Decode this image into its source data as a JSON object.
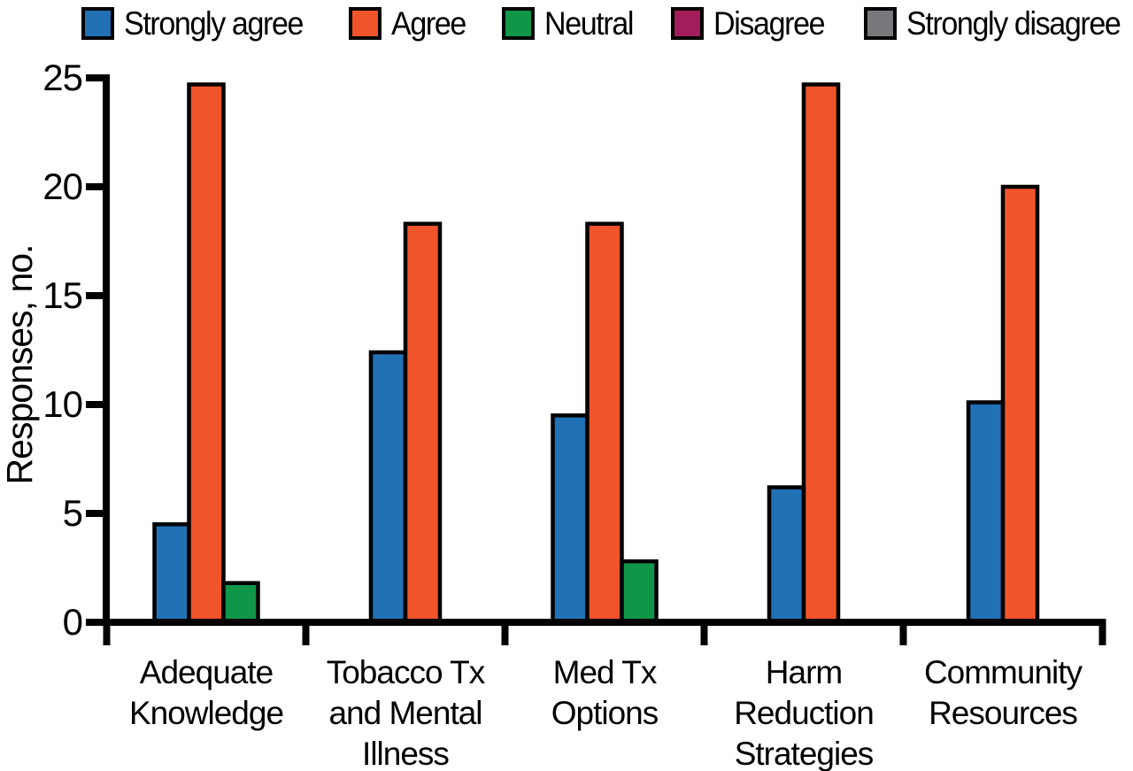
{
  "chart_data": {
    "type": "bar",
    "title": "",
    "xlabel": "",
    "ylabel": "Responses, no.",
    "ylim": [
      0,
      25
    ],
    "yticks": [
      0,
      5,
      10,
      15,
      20,
      25
    ],
    "grid": false,
    "legend_position": "top",
    "axis_color": "#000000",
    "background_color": "#ffffff",
    "categories": [
      {
        "label": "Adequate Knowledge",
        "lines": [
          "Adequate",
          "Knowledge"
        ]
      },
      {
        "label": "Tobacco Tx and Mental Illness",
        "lines": [
          "Tobacco Tx",
          "and Mental",
          "Illness"
        ]
      },
      {
        "label": "Med Tx Options",
        "lines": [
          "Med Tx",
          "Options"
        ]
      },
      {
        "label": "Harm Reduction Strategies",
        "lines": [
          "Harm",
          "Reduction",
          "Strategies"
        ]
      },
      {
        "label": "Community Resources",
        "lines": [
          "Community",
          "Resources"
        ]
      }
    ],
    "series": [
      {
        "name": "Strongly agree",
        "color": "#2171B5",
        "values": [
          4.5,
          12.4,
          9.5,
          6.2,
          10.1
        ]
      },
      {
        "name": "Agree",
        "color": "#F0542A",
        "values": [
          24.7,
          18.3,
          18.3,
          24.7,
          20.0
        ]
      },
      {
        "name": "Neutral",
        "color": "#0F9648",
        "values": [
          1.8,
          0,
          2.8,
          0,
          0
        ]
      },
      {
        "name": "Disagree",
        "color": "#A21E5A",
        "values": [
          0,
          0,
          0,
          0,
          0
        ]
      },
      {
        "name": "Strongly disagree",
        "color": "#77787B",
        "values": [
          0,
          0,
          0,
          0,
          0
        ]
      }
    ]
  }
}
